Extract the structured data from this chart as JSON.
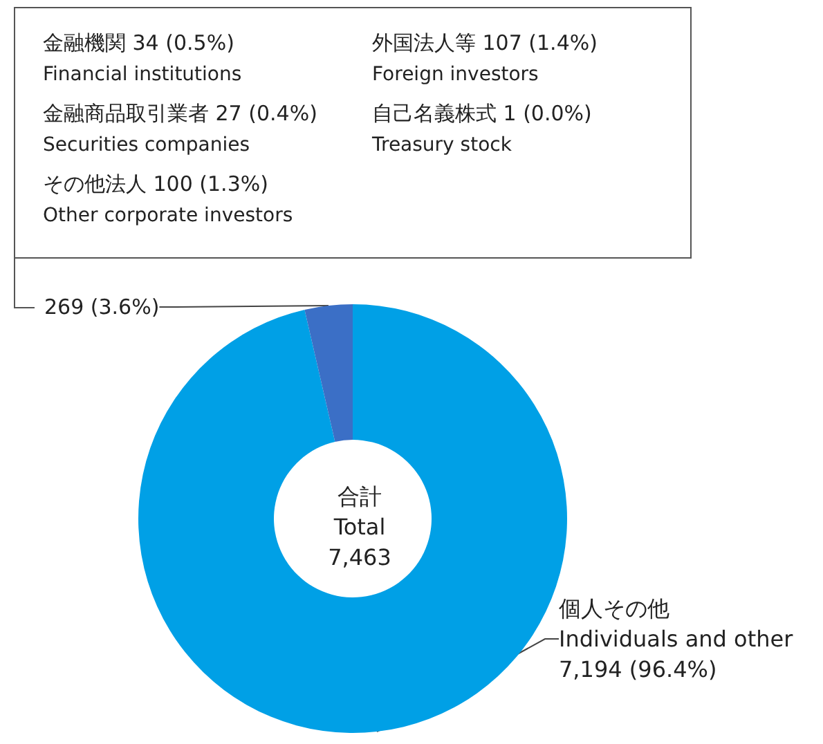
{
  "chart_data": {
    "type": "donut",
    "title": "合計\nTotal\n7,463",
    "categories": [
      "個人その他\nIndividuals and other",
      null
    ],
    "values": [
      7194,
      269
    ],
    "value_labels": [
      "7,194 (96.4%)",
      "269 (3.6%)"
    ],
    "colors": [
      "#00a0e6",
      "#3b6fc6"
    ],
    "annotations": [
      "金融機関 34 (0.5%)\nFinancial institutions",
      "外国法人等 107 (1.4%)\nForeign investors",
      "金融商品取引業者 27 (0.4%)\nSecurities companies",
      "自己名義株式 1 (0.0%)\nTreasury stock",
      "その他法人 100 (1.3%)\nOther corporate investors"
    ],
    "legend": false
  }
}
